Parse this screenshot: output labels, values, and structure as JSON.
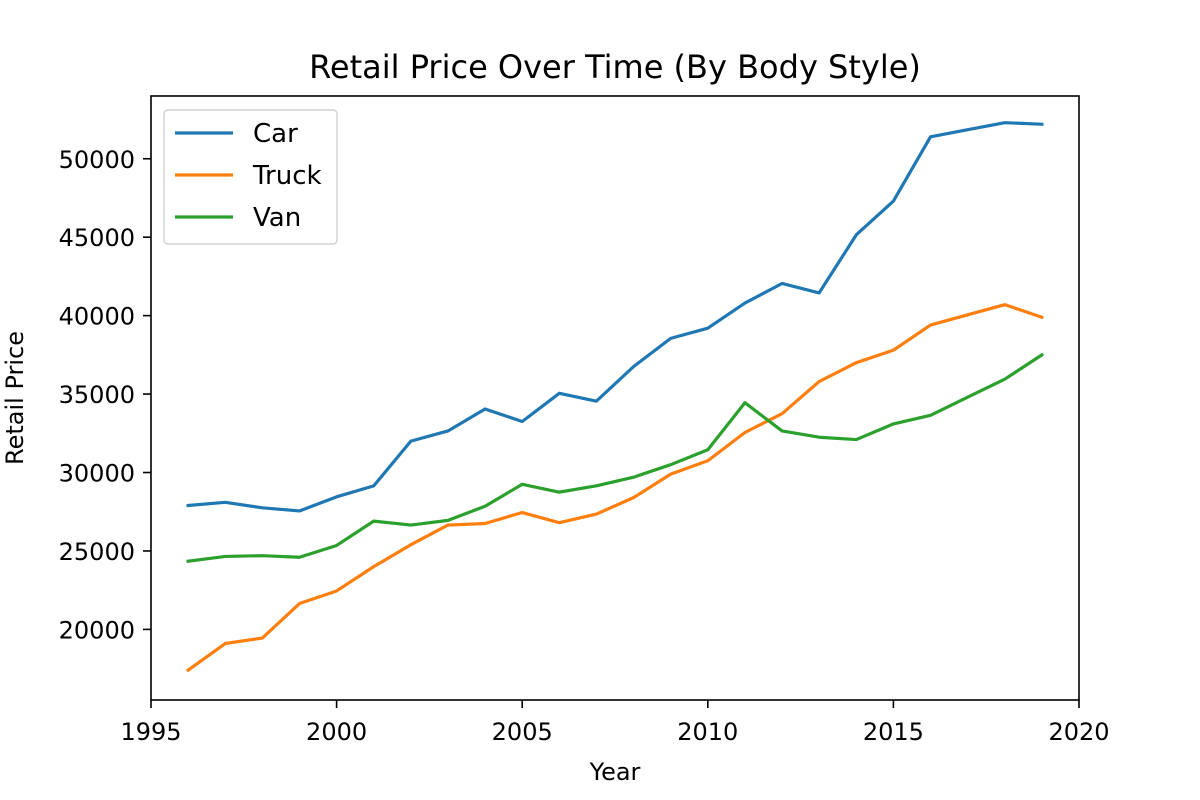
{
  "chart_data": {
    "type": "line",
    "title": "Retail Price Over Time (By Body Style)",
    "xlabel": "Year",
    "ylabel": "Retail Price",
    "xlim": [
      1995,
      2020
    ],
    "ylim": [
      15500,
      54000
    ],
    "xticks": [
      1995,
      2000,
      2005,
      2010,
      2015,
      2020
    ],
    "yticks": [
      20000,
      25000,
      30000,
      35000,
      40000,
      45000,
      50000
    ],
    "grid": false,
    "legend_position": "upper-left",
    "x": [
      1996,
      1997,
      1998,
      1999,
      2000,
      2001,
      2002,
      2003,
      2004,
      2005,
      2006,
      2007,
      2008,
      2009,
      2010,
      2011,
      2012,
      2013,
      2014,
      2015,
      2016,
      2017,
      2018,
      2019
    ],
    "series": [
      {
        "name": "Car",
        "color": "#1f77b4",
        "values": [
          27900,
          28100,
          27750,
          27550,
          28450,
          29150,
          32000,
          32650,
          34050,
          33250,
          35050,
          34550,
          36750,
          38550,
          39200,
          40800,
          42050,
          41450,
          45150,
          47300,
          51400,
          51850,
          52300,
          52200
        ]
      },
      {
        "name": "Truck",
        "color": "#ff7f0e",
        "values": [
          17400,
          19100,
          19450,
          21650,
          22450,
          24000,
          25400,
          26650,
          26750,
          27450,
          26800,
          27350,
          28400,
          29900,
          30750,
          32550,
          33750,
          35800,
          37000,
          37800,
          39400,
          40050,
          40700,
          39900
        ]
      },
      {
        "name": "Van",
        "color": "#2ca02c",
        "values": [
          24350,
          24650,
          24700,
          24600,
          25350,
          26900,
          26650,
          26950,
          27850,
          29250,
          28750,
          29150,
          29700,
          30500,
          31450,
          34450,
          32650,
          32250,
          32100,
          33100,
          33650,
          34800,
          35950,
          37500
        ]
      }
    ]
  }
}
